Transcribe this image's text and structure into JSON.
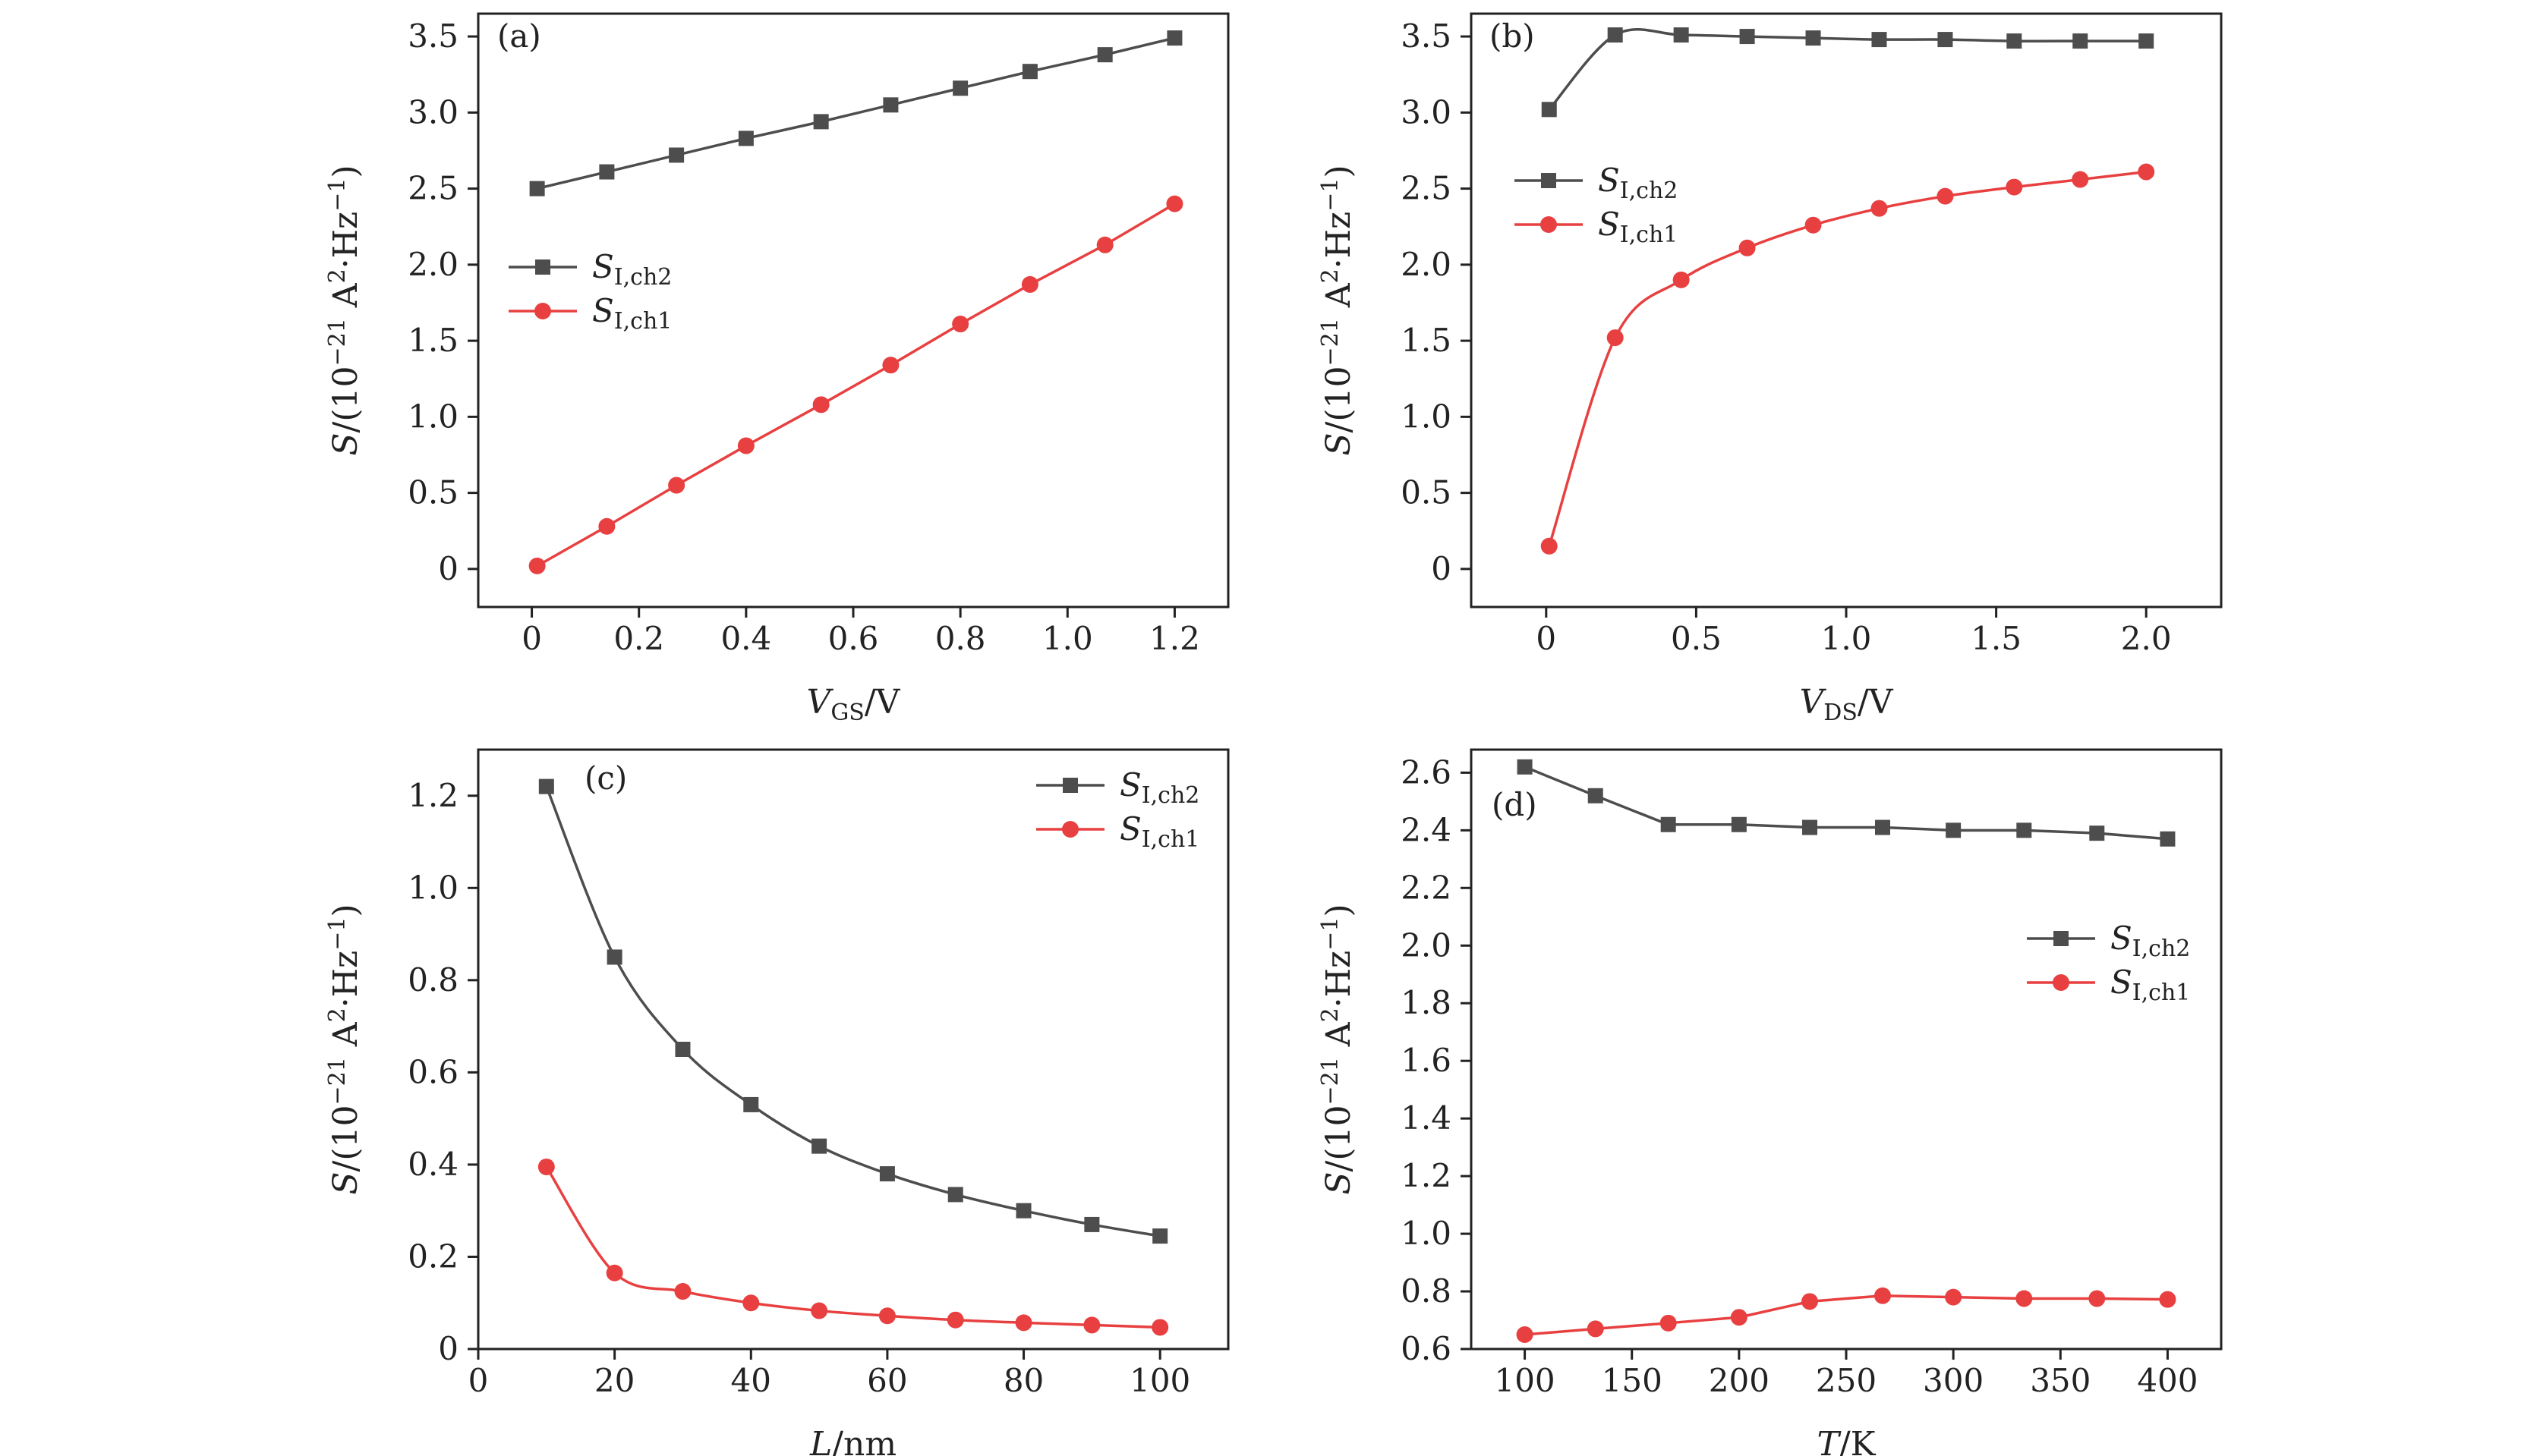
{
  "chart_data": [
    {
      "panel": "(a)",
      "type": "line",
      "xlabel": "V_GS/V",
      "xlabel_main": "V",
      "xlabel_sub": "GS",
      "xlabel_tail": "/V",
      "ylabel": "S/(10^-21 A^2·Hz^-1)",
      "xlim": [
        -0.1,
        1.3
      ],
      "ylim": [
        -0.25,
        3.65
      ],
      "xticks": [
        0,
        0.2,
        0.4,
        0.6,
        0.8,
        1.0,
        1.2
      ],
      "xtick_labels": [
        "0",
        "0.2",
        "0.4",
        "0.6",
        "0.8",
        "1.0",
        "1.2"
      ],
      "yticks": [
        0,
        0.5,
        1.0,
        1.5,
        2.0,
        2.5,
        3.0,
        3.5
      ],
      "ytick_labels": [
        "0",
        "0.5",
        "1.0",
        "1.5",
        "2.0",
        "2.5",
        "3.0",
        "3.5"
      ],
      "smooth": false,
      "legend": "center-left",
      "series": [
        {
          "name": "S_I,ch2",
          "label_main": "S",
          "label_sub": "I,ch2",
          "color": "#4d4d4d",
          "marker": "square",
          "x": [
            0.01,
            0.14,
            0.27,
            0.4,
            0.54,
            0.67,
            0.8,
            0.93,
            1.07,
            1.2
          ],
          "y": [
            2.5,
            2.61,
            2.72,
            2.83,
            2.94,
            3.05,
            3.16,
            3.27,
            3.38,
            3.49
          ]
        },
        {
          "name": "S_I,ch1",
          "label_main": "S",
          "label_sub": "I,ch1",
          "color": "#e84040",
          "marker": "circle",
          "x": [
            0.01,
            0.14,
            0.27,
            0.4,
            0.54,
            0.67,
            0.8,
            0.93,
            1.07,
            1.2
          ],
          "y": [
            0.02,
            0.28,
            0.55,
            0.81,
            1.08,
            1.34,
            1.61,
            1.87,
            2.13,
            2.4
          ]
        }
      ]
    },
    {
      "panel": "(b)",
      "type": "line",
      "xlabel": "V_DS/V",
      "xlabel_main": "V",
      "xlabel_sub": "DS",
      "xlabel_tail": "/V",
      "ylabel": "S/(10^-21 A^2·Hz^-1)",
      "xlim": [
        -0.25,
        2.25
      ],
      "ylim": [
        -0.25,
        3.65
      ],
      "xticks": [
        0,
        0.5,
        1.0,
        1.5,
        2.0
      ],
      "xtick_labels": [
        "0",
        "0.5",
        "1.0",
        "1.5",
        "2.0"
      ],
      "yticks": [
        0,
        0.5,
        1.0,
        1.5,
        2.0,
        2.5,
        3.0,
        3.5
      ],
      "ytick_labels": [
        "0",
        "0.5",
        "1.0",
        "1.5",
        "2.0",
        "2.5",
        "3.0",
        "3.5"
      ],
      "smooth": true,
      "legend": "upper-left",
      "series": [
        {
          "name": "S_I,ch2",
          "label_main": "S",
          "label_sub": "I,ch2",
          "color": "#4d4d4d",
          "marker": "square",
          "x": [
            0.01,
            0.23,
            0.45,
            0.67,
            0.89,
            1.11,
            1.33,
            1.56,
            1.78,
            2.0
          ],
          "y": [
            3.02,
            3.51,
            3.51,
            3.5,
            3.49,
            3.48,
            3.48,
            3.47,
            3.47,
            3.47
          ]
        },
        {
          "name": "S_I,ch1",
          "label_main": "S",
          "label_sub": "I,ch1",
          "color": "#e84040",
          "marker": "circle",
          "x": [
            0.01,
            0.23,
            0.45,
            0.67,
            0.89,
            1.11,
            1.33,
            1.56,
            1.78,
            2.0
          ],
          "y": [
            0.15,
            1.52,
            1.9,
            2.11,
            2.26,
            2.37,
            2.45,
            2.51,
            2.56,
            2.61
          ]
        }
      ]
    },
    {
      "panel": "(c)",
      "type": "line",
      "xlabel": "L/nm",
      "xlabel_main": "L",
      "xlabel_sub": "",
      "xlabel_tail": "/nm",
      "ylabel": "S/(10^-21 A^2·Hz^-1)",
      "xlim": [
        0,
        110
      ],
      "ylim": [
        0,
        1.3
      ],
      "xticks": [
        0,
        20,
        40,
        60,
        80,
        100
      ],
      "xtick_labels": [
        "0",
        "20",
        "40",
        "60",
        "80",
        "100"
      ],
      "yticks": [
        0,
        0.2,
        0.4,
        0.6,
        0.8,
        1.0,
        1.2
      ],
      "ytick_labels": [
        "0",
        "0.2",
        "0.4",
        "0.6",
        "0.8",
        "1.0",
        "1.2"
      ],
      "smooth": true,
      "legend": "top-right",
      "series": [
        {
          "name": "S_I,ch2",
          "label_main": "S",
          "label_sub": "I,ch2",
          "color": "#4d4d4d",
          "marker": "square",
          "x": [
            10,
            20,
            30,
            40,
            50,
            60,
            70,
            80,
            90,
            100
          ],
          "y": [
            1.22,
            0.85,
            0.65,
            0.53,
            0.44,
            0.38,
            0.335,
            0.3,
            0.27,
            0.245
          ]
        },
        {
          "name": "S_I,ch1",
          "label_main": "S",
          "label_sub": "I,ch1",
          "color": "#e84040",
          "marker": "circle",
          "x": [
            10,
            20,
            30,
            40,
            50,
            60,
            70,
            80,
            90,
            100
          ],
          "y": [
            0.395,
            0.165,
            0.125,
            0.1,
            0.083,
            0.072,
            0.063,
            0.057,
            0.052,
            0.047
          ]
        }
      ]
    },
    {
      "panel": "(d)",
      "type": "line",
      "xlabel": "T/K",
      "xlabel_main": "T",
      "xlabel_sub": "",
      "xlabel_tail": "/K",
      "ylabel": "S/(10^-21 A^2·Hz^-1)",
      "xlim": [
        75,
        425
      ],
      "ylim": [
        0.6,
        2.68
      ],
      "xticks": [
        100,
        150,
        200,
        250,
        300,
        350,
        400
      ],
      "xtick_labels": [
        "100",
        "150",
        "200",
        "250",
        "300",
        "350",
        "400"
      ],
      "yticks": [
        0.6,
        0.8,
        1.0,
        1.2,
        1.4,
        1.6,
        1.8,
        2.0,
        2.2,
        2.4,
        2.6
      ],
      "ytick_labels": [
        "0.6",
        "0.8",
        "1.0",
        "1.2",
        "1.4",
        "1.6",
        "1.8",
        "2.0",
        "2.2",
        "2.4",
        "2.6"
      ],
      "smooth": false,
      "legend": "right",
      "series": [
        {
          "name": "S_I,ch2",
          "label_main": "S",
          "label_sub": "I,ch2",
          "color": "#4d4d4d",
          "marker": "square",
          "x": [
            100,
            133,
            167,
            200,
            233,
            267,
            300,
            333,
            367,
            400
          ],
          "y": [
            2.62,
            2.52,
            2.42,
            2.42,
            2.41,
            2.41,
            2.4,
            2.4,
            2.39,
            2.37
          ]
        },
        {
          "name": "S_I,ch1",
          "label_main": "S",
          "label_sub": "I,ch1",
          "color": "#e84040",
          "marker": "circle",
          "x": [
            100,
            133,
            167,
            200,
            233,
            267,
            300,
            333,
            367,
            400
          ],
          "y": [
            0.65,
            0.67,
            0.69,
            0.71,
            0.765,
            0.785,
            0.78,
            0.775,
            0.775,
            0.772
          ]
        }
      ]
    }
  ]
}
